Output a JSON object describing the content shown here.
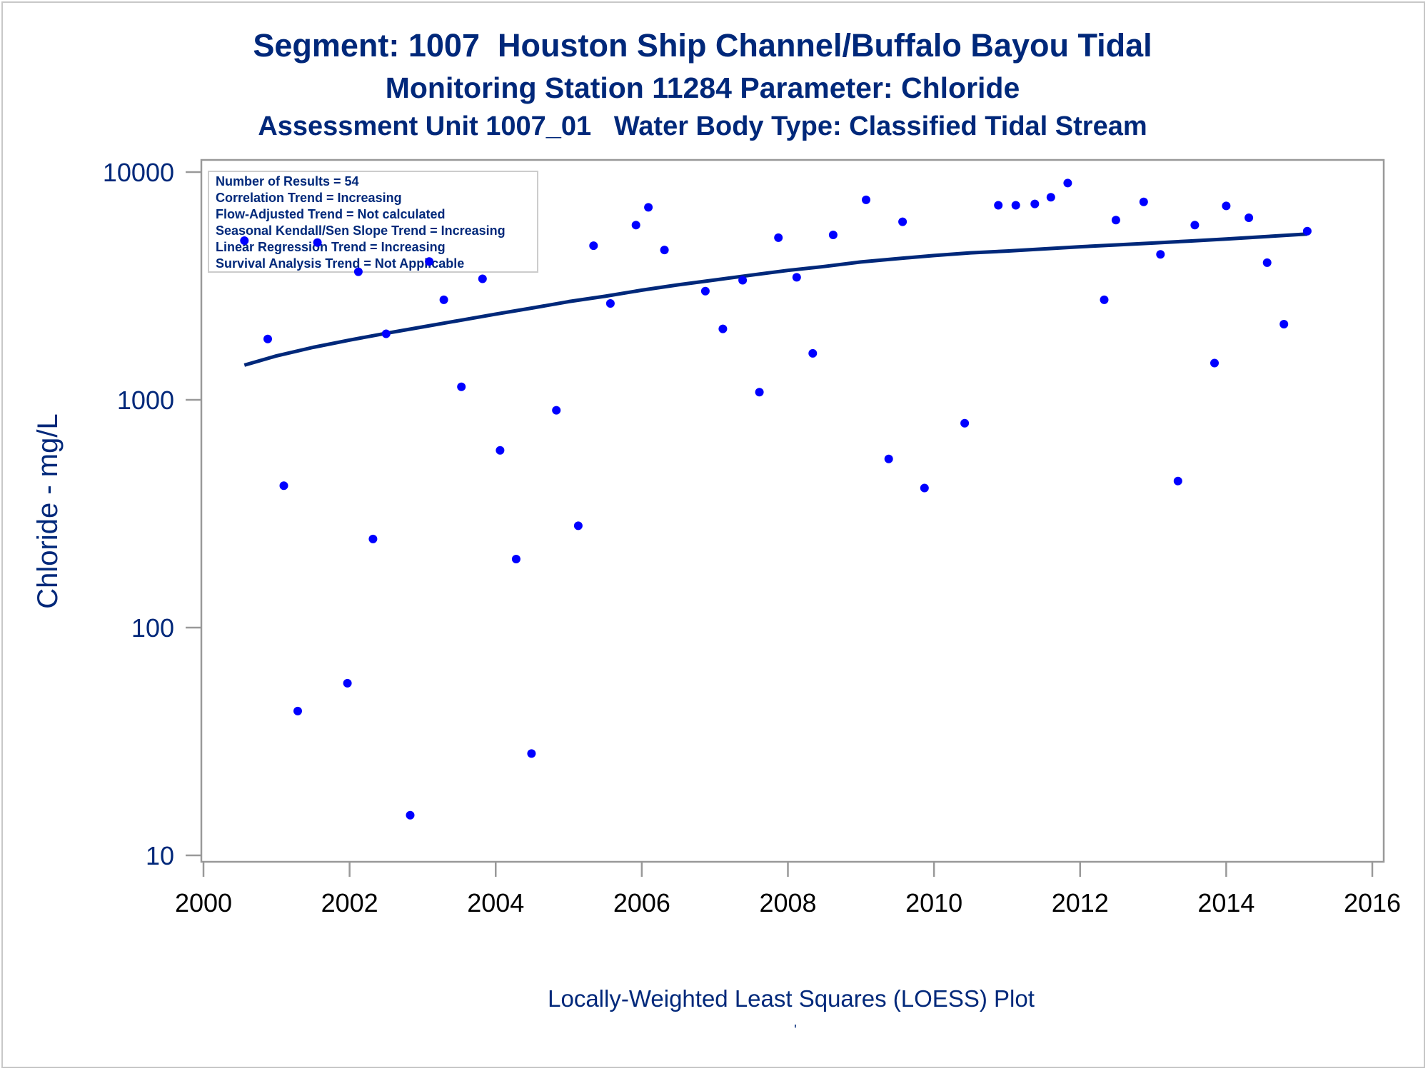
{
  "titles": {
    "line1": "Segment: 1007  Houston Ship Channel/Buffalo Bayou Tidal",
    "line2": "Monitoring Station 11284 Parameter: Chloride",
    "line3": "Assessment Unit 1007_01   Water Body Type: Classified Tidal Stream"
  },
  "footnote": "Locally-Weighted Least Squares (LOESS) Plot",
  "footnote_mark": "'",
  "colors": {
    "text": "#00287a",
    "points": "#0000ff",
    "trend_line": "#00287a",
    "axis": "#999999"
  },
  "chart_data": {
    "type": "scatter",
    "title": "Segment: 1007  Houston Ship Channel/Buffalo Bayou Tidal",
    "xlabel": "",
    "ylabel": "Chloride - mg/L",
    "yscale": "log",
    "xlim": [
      2000,
      2016
    ],
    "ylim": [
      10,
      10000
    ],
    "xticks": [
      "2000",
      "2002",
      "2004",
      "2006",
      "2008",
      "2010",
      "2012",
      "2014",
      "2016"
    ],
    "yticks": [
      "10",
      "100",
      "1000",
      "10000"
    ],
    "grid": false,
    "legend": {
      "placement": "top-left",
      "lines": [
        "Number of Results = 54",
        "Correlation Trend = Increasing",
        "Flow-Adjusted Trend = Not calculated",
        "Seasonal Kendall/Sen Slope Trend = Increasing",
        "Linear Regression Trend = Increasing",
        "Survival Analysis Trend = Not Applicable"
      ]
    },
    "series": [
      {
        "kind": "points",
        "x": [
          2000.56,
          2000.88,
          2001.1,
          2001.29,
          2001.56,
          2001.97,
          2002.12,
          2002.32,
          2002.5,
          2002.83,
          2003.09,
          2003.29,
          2003.53,
          2003.82,
          2004.06,
          2004.28,
          2004.49,
          2004.83,
          2005.13,
          2005.34,
          2005.57,
          2005.92,
          2006.09,
          2006.31,
          2006.87,
          2007.11,
          2007.38,
          2007.61,
          2007.87,
          2008.12,
          2008.34,
          2008.62,
          2009.07,
          2009.38,
          2009.57,
          2009.87,
          2010.42,
          2010.88,
          2011.12,
          2011.38,
          2011.6,
          2011.83,
          2012.33,
          2012.49,
          2012.87,
          2013.1,
          2013.34,
          2013.57,
          2013.84,
          2014.0,
          2014.31,
          2014.56,
          2014.79,
          2015.11
        ],
        "y": [
          5000,
          1850,
          420,
          43,
          4900,
          57,
          3650,
          245,
          1950,
          15,
          4050,
          2750,
          1140,
          3400,
          600,
          200,
          28,
          900,
          280,
          4750,
          2650,
          5850,
          7000,
          4550,
          3000,
          2050,
          3350,
          1080,
          5150,
          3450,
          1600,
          5300,
          7550,
          550,
          6050,
          410,
          790,
          7150,
          7150,
          7250,
          7750,
          8950,
          2750,
          6150,
          7400,
          4350,
          440,
          5850,
          1450,
          7100,
          6300,
          4000,
          2150,
          5500
        ]
      },
      {
        "kind": "loess_line",
        "x": [
          2000.56,
          2001.0,
          2001.5,
          2002.0,
          2002.5,
          2003.0,
          2003.5,
          2004.0,
          2004.5,
          2005.0,
          2005.5,
          2006.0,
          2006.5,
          2007.0,
          2007.5,
          2008.0,
          2008.5,
          2009.0,
          2009.5,
          2010.0,
          2010.5,
          2011.0,
          2011.5,
          2012.0,
          2012.5,
          2013.0,
          2013.5,
          2014.0,
          2014.5,
          2015.11
        ],
        "y": [
          1420,
          1560,
          1700,
          1830,
          1960,
          2090,
          2230,
          2380,
          2530,
          2700,
          2850,
          3030,
          3200,
          3360,
          3530,
          3700,
          3850,
          4030,
          4170,
          4300,
          4420,
          4500,
          4600,
          4700,
          4790,
          4880,
          4980,
          5080,
          5200,
          5350
        ]
      }
    ]
  }
}
